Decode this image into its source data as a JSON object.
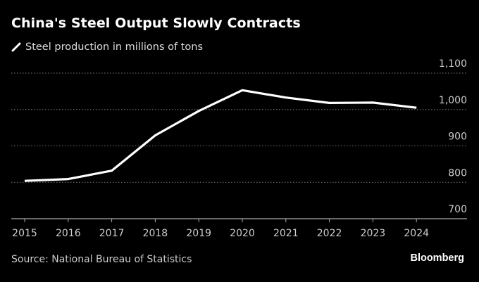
{
  "header": {
    "title": "China's Steel Output Slowly Contracts",
    "legend_label": "Steel production in millions of tons"
  },
  "footer": {
    "source": "Source: National Bureau of Statistics",
    "brand": "Bloomberg"
  },
  "colors": {
    "background": "#000000",
    "line": "#ffffff",
    "grid": "#777777",
    "axis": "#aaaaaa"
  },
  "chart_data": {
    "type": "line",
    "title": "China's Steel Output Slowly Contracts",
    "xlabel": "",
    "ylabel": "Steel production in millions of tons",
    "x": [
      "2015",
      "2016",
      "2017",
      "2018",
      "2019",
      "2020",
      "2021",
      "2022",
      "2023",
      "2024"
    ],
    "series": [
      {
        "name": "Steel production in millions of tons",
        "values": [
          804,
          809,
          832,
          929,
          996,
          1053,
          1033,
          1018,
          1019,
          1005
        ]
      }
    ],
    "ylim": [
      700,
      1100
    ],
    "yticks": [
      700,
      800,
      900,
      1000,
      1100
    ],
    "ytick_labels": [
      "700",
      "800",
      "900",
      "1,000",
      "1,100"
    ],
    "y_axis_side": "right",
    "grid": true,
    "legend": "top-left"
  }
}
